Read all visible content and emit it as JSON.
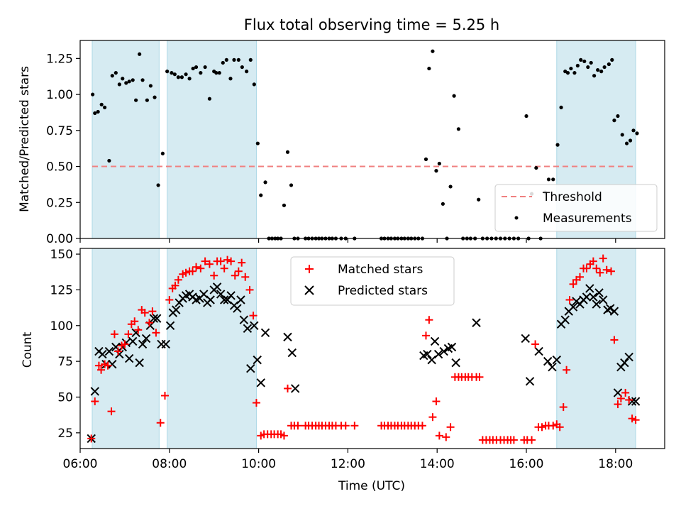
{
  "chart_data": [
    {
      "type": "scatter",
      "title": "Flux total observing time = 5.25 h",
      "xlabel": "",
      "ylabel": "Matched/Predicted stars",
      "xlim": [
        6.0,
        19.1
      ],
      "ylim": [
        0,
        1.375
      ],
      "yticks": [
        0,
        0.25,
        0.5,
        0.75,
        1.0,
        1.25
      ],
      "ytick_labels": [
        "0.00",
        "0.25",
        "0.50",
        "0.75",
        "1.00",
        "1.25"
      ],
      "xticks": [
        6,
        8,
        10,
        12,
        14,
        16,
        18
      ],
      "shaded_spans_utc": [
        [
          6.27,
          7.77
        ],
        [
          7.95,
          9.95
        ],
        [
          16.68,
          18.45
        ]
      ],
      "threshold": {
        "name": "Threshold",
        "value": 0.5,
        "x_range": [
          6.27,
          18.45
        ],
        "color": "#f08080"
      },
      "legend": {
        "placement": "lower-right",
        "entries": [
          "Threshold",
          "Measurements"
        ]
      },
      "series": [
        {
          "name": "Measurements",
          "color": "#000000",
          "x": [
            6.28,
            6.33,
            6.4,
            6.48,
            6.55,
            6.65,
            6.72,
            6.8,
            6.88,
            6.95,
            7.03,
            7.1,
            7.18,
            7.25,
            7.33,
            7.4,
            7.5,
            7.58,
            7.67,
            7.75,
            7.85,
            7.95,
            8.05,
            8.12,
            8.2,
            8.28,
            8.37,
            8.45,
            8.53,
            8.6,
            8.7,
            8.8,
            8.9,
            9.0,
            9.05,
            9.12,
            9.2,
            9.28,
            9.37,
            9.45,
            9.55,
            9.63,
            9.73,
            9.82,
            9.9,
            9.98,
            10.05,
            10.15,
            10.23,
            10.3,
            10.37,
            10.43,
            10.5,
            10.57,
            10.65,
            10.73,
            10.8,
            10.88,
            11.05,
            11.12,
            11.2,
            11.28,
            11.35,
            11.42,
            11.5,
            11.58,
            11.65,
            11.73,
            11.85,
            11.95,
            12.15,
            12.75,
            12.82,
            12.9,
            12.97,
            13.05,
            13.12,
            13.2,
            13.27,
            13.35,
            13.42,
            13.5,
            13.58,
            13.67,
            13.75,
            13.82,
            13.9,
            13.98,
            14.05,
            14.13,
            14.22,
            14.3,
            14.38,
            14.48,
            14.58,
            14.67,
            14.75,
            14.85,
            14.93,
            15.02,
            15.12,
            15.22,
            15.32,
            15.42,
            15.52,
            15.62,
            15.72,
            15.82,
            16.0,
            16.05,
            16.12,
            16.22,
            16.32,
            16.42,
            16.5,
            16.6,
            16.7,
            16.78,
            16.87,
            16.93,
            17.0,
            17.08,
            17.15,
            17.22,
            17.3,
            17.38,
            17.45,
            17.52,
            17.6,
            17.68,
            17.75,
            17.85,
            17.92,
            17.97,
            18.05,
            18.15,
            18.25,
            18.33,
            18.4,
            18.48
          ],
          "y": [
            1.0,
            0.87,
            0.88,
            0.93,
            0.91,
            0.54,
            1.13,
            1.15,
            1.07,
            1.11,
            1.08,
            1.09,
            1.1,
            0.96,
            1.28,
            1.1,
            0.96,
            1.06,
            0.98,
            0.37,
            0.59,
            1.16,
            1.15,
            1.14,
            1.12,
            1.12,
            1.14,
            1.11,
            1.18,
            1.19,
            1.15,
            1.19,
            0.97,
            1.16,
            1.15,
            1.15,
            1.22,
            1.24,
            1.11,
            1.24,
            1.24,
            1.19,
            1.16,
            1.24,
            1.07,
            0.66,
            0.3,
            0.39,
            0,
            0,
            0,
            0,
            0,
            0.23,
            0.6,
            0.37,
            0,
            0,
            0,
            0,
            0,
            0,
            0,
            0,
            0,
            0,
            0,
            0,
            0,
            0,
            0,
            0,
            0,
            0,
            0,
            0,
            0,
            0,
            0,
            0,
            0,
            0,
            0,
            0,
            0.55,
            1.18,
            1.3,
            0.47,
            0.52,
            0.24,
            0,
            0.36,
            0.99,
            0.76,
            0,
            0,
            0,
            0,
            0.27,
            0,
            0,
            0,
            0,
            0,
            0,
            0,
            0,
            0,
            0.85,
            0,
            0.31,
            0.49,
            0,
            0.32,
            0.41,
            0.41,
            0.65,
            0.91,
            1.16,
            1.15,
            1.18,
            1.15,
            1.2,
            1.24,
            1.23,
            1.19,
            1.22,
            1.13,
            1.17,
            1.16,
            1.19,
            1.21,
            1.24,
            0.82,
            0.85,
            0.72,
            0.66,
            0.68,
            0.75,
            0.73
          ]
        }
      ]
    },
    {
      "type": "scatter",
      "title": "",
      "xlabel": "Time (UTC)",
      "ylabel": "Count",
      "xlim": [
        6.0,
        19.1
      ],
      "ylim": [
        14,
        154
      ],
      "yticks": [
        25,
        50,
        75,
        100,
        125,
        150
      ],
      "ytick_labels": [
        "25",
        "50",
        "75",
        "100",
        "125",
        "150"
      ],
      "xticks": [
        6,
        8,
        10,
        12,
        14,
        16,
        18
      ],
      "xtick_labels": [
        "06:00",
        "08:00",
        "10:00",
        "12:00",
        "14:00",
        "16:00",
        "18:00"
      ],
      "shaded_spans_utc": [
        [
          6.27,
          7.77
        ],
        [
          7.95,
          9.95
        ],
        [
          16.68,
          18.45
        ]
      ],
      "legend": {
        "placement": "top-center",
        "entries": [
          "Matched stars",
          "Predicted stars"
        ]
      },
      "series": [
        {
          "name": "Matched stars",
          "color": "#ff0000",
          "marker": "+",
          "x": [
            6.25,
            6.33,
            6.42,
            6.47,
            6.55,
            6.62,
            6.7,
            6.77,
            6.85,
            6.93,
            7.0,
            7.08,
            7.15,
            7.22,
            7.3,
            7.38,
            7.45,
            7.55,
            7.62,
            7.7,
            7.8,
            7.9,
            8.0,
            8.07,
            8.13,
            8.2,
            8.3,
            8.37,
            8.45,
            8.52,
            8.6,
            8.7,
            8.8,
            8.9,
            9.0,
            9.07,
            9.15,
            9.23,
            9.3,
            9.38,
            9.47,
            9.55,
            9.62,
            9.7,
            9.8,
            9.88,
            9.95,
            10.05,
            10.12,
            10.2,
            10.28,
            10.35,
            10.43,
            10.5,
            10.57,
            10.65,
            10.73,
            10.8,
            10.88,
            11.05,
            11.12,
            11.2,
            11.28,
            11.35,
            11.42,
            11.5,
            11.58,
            11.65,
            11.73,
            11.85,
            11.95,
            12.15,
            12.75,
            12.82,
            12.9,
            12.97,
            13.05,
            13.12,
            13.2,
            13.27,
            13.35,
            13.42,
            13.5,
            13.58,
            13.67,
            13.75,
            13.82,
            13.9,
            13.98,
            14.05,
            14.2,
            14.3,
            14.4,
            14.48,
            14.55,
            14.63,
            14.7,
            14.78,
            14.88,
            14.95,
            15.02,
            15.1,
            15.18,
            15.25,
            15.33,
            15.42,
            15.5,
            15.58,
            15.65,
            15.72,
            15.95,
            16.02,
            16.12,
            16.2,
            16.27,
            16.35,
            16.43,
            16.5,
            16.6,
            16.68,
            16.75,
            16.83,
            16.9,
            16.97,
            17.05,
            17.12,
            17.2,
            17.28,
            17.35,
            17.43,
            17.5,
            17.57,
            17.65,
            17.72,
            17.8,
            17.9,
            17.97,
            18.05,
            18.12,
            18.22,
            18.3,
            18.37,
            18.45
          ],
          "y": [
            21,
            47,
            72,
            69,
            73,
            72,
            40,
            94,
            82,
            86,
            87,
            94,
            101,
            103,
            97,
            111,
            109,
            102,
            110,
            95,
            32,
            51,
            118,
            126,
            128,
            132,
            136,
            137,
            138,
            138,
            141,
            140,
            145,
            143,
            135,
            145,
            145,
            140,
            146,
            145,
            135,
            138,
            144,
            134,
            125,
            107,
            46,
            23,
            24,
            24,
            24,
            24,
            24,
            24,
            23,
            56,
            30,
            30,
            30,
            30,
            30,
            30,
            30,
            30,
            30,
            30,
            30,
            30,
            30,
            30,
            30,
            30,
            30,
            30,
            30,
            30,
            30,
            30,
            30,
            30,
            30,
            30,
            30,
            30,
            30,
            93,
            104,
            36,
            47,
            23,
            22,
            29,
            64,
            64,
            64,
            64,
            64,
            64,
            64,
            64,
            20,
            20,
            20,
            20,
            20,
            20,
            20,
            20,
            20,
            20,
            20,
            20,
            20,
            87,
            29,
            29,
            30,
            30,
            30,
            31,
            29,
            43,
            69,
            118,
            129,
            132,
            134,
            140,
            140,
            143,
            145,
            140,
            137,
            147,
            139,
            138,
            90,
            45,
            49,
            53,
            48,
            35,
            34
          ]
        },
        {
          "name": "Predicted stars",
          "color": "#000000",
          "marker": "x",
          "x": [
            6.25,
            6.33,
            6.42,
            6.5,
            6.58,
            6.65,
            6.72,
            6.8,
            6.88,
            6.95,
            7.03,
            7.1,
            7.18,
            7.25,
            7.33,
            7.4,
            7.48,
            7.57,
            7.65,
            7.72,
            7.82,
            7.92,
            8.02,
            8.08,
            8.15,
            8.22,
            8.3,
            8.37,
            8.45,
            8.52,
            8.6,
            8.68,
            8.77,
            8.85,
            8.92,
            9.0,
            9.07,
            9.15,
            9.23,
            9.3,
            9.38,
            9.45,
            9.52,
            9.6,
            9.67,
            9.75,
            9.82,
            9.9,
            9.97,
            10.05,
            10.15,
            10.65,
            10.75,
            10.82,
            13.7,
            13.78,
            13.88,
            13.95,
            14.03,
            14.15,
            14.25,
            14.33,
            14.42,
            14.88,
            15.98,
            16.08,
            16.28,
            16.48,
            16.58,
            16.68,
            16.78,
            16.87,
            16.95,
            17.05,
            17.12,
            17.2,
            17.28,
            17.35,
            17.42,
            17.5,
            17.57,
            17.63,
            17.72,
            17.82,
            17.88,
            17.97,
            18.05,
            18.12,
            18.2,
            18.3,
            18.37,
            18.45
          ],
          "y": [
            21,
            54,
            82,
            80,
            73,
            82,
            73,
            85,
            80,
            85,
            88,
            77,
            89,
            95,
            74,
            87,
            91,
            100,
            105,
            105,
            87,
            87,
            100,
            109,
            111,
            116,
            119,
            121,
            122,
            120,
            118,
            119,
            122,
            116,
            118,
            125,
            127,
            122,
            118,
            118,
            121,
            114,
            112,
            118,
            104,
            98,
            70,
            100,
            76,
            60,
            95,
            92,
            81,
            56,
            79,
            80,
            76,
            89,
            80,
            82,
            84,
            85,
            74,
            102,
            91,
            61,
            82,
            75,
            71,
            76,
            101,
            104,
            110,
            113,
            117,
            115,
            118,
            120,
            126,
            120,
            115,
            123,
            118,
            111,
            112,
            110,
            53,
            71,
            74,
            78,
            47,
            47
          ]
        }
      ]
    }
  ]
}
